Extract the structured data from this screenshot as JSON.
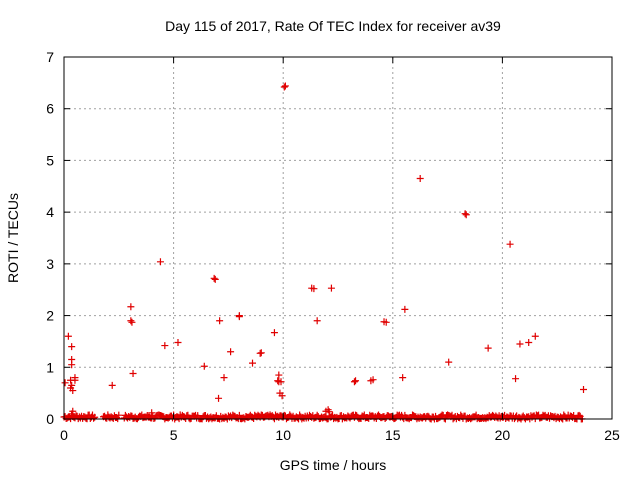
{
  "chart_data": {
    "type": "scatter",
    "title": "Day 115 of 2017, Rate Of TEC Index for receiver av39",
    "xlabel": "GPS time / hours",
    "ylabel": "ROTI / TECUs",
    "xlim": [
      0,
      25
    ],
    "ylim": [
      0,
      7
    ],
    "xticks": [
      "0",
      "5",
      "10",
      "15",
      "20",
      "25"
    ],
    "yticks": [
      "0",
      "1",
      "2",
      "3",
      "4",
      "5",
      "6",
      "7"
    ],
    "grid": true,
    "marker": "plus",
    "color": "#e00000",
    "baseline_noise": {
      "x_start": 0.0,
      "x_end": 23.7,
      "y_min": 0.0,
      "y_max": 0.08,
      "step": 0.05,
      "gaps": [
        [
          1.45,
          1.8
        ],
        [
          2.5,
          2.7
        ],
        [
          23.8,
          25
        ]
      ]
    },
    "points": [
      [
        0.05,
        0.7
      ],
      [
        0.2,
        1.6
      ],
      [
        0.3,
        0.75
      ],
      [
        0.3,
        0.6
      ],
      [
        0.35,
        1.4
      ],
      [
        0.35,
        1.15
      ],
      [
        0.35,
        1.05
      ],
      [
        0.35,
        0.65
      ],
      [
        0.4,
        0.55
      ],
      [
        0.5,
        0.8
      ],
      [
        0.5,
        0.75
      ],
      [
        0.35,
        0.1
      ],
      [
        0.4,
        0.15
      ],
      [
        2.2,
        0.65
      ],
      [
        3.05,
        2.17
      ],
      [
        3.05,
        1.9
      ],
      [
        3.1,
        1.87
      ],
      [
        3.15,
        0.88
      ],
      [
        4.0,
        0.12
      ],
      [
        4.4,
        3.04
      ],
      [
        4.6,
        1.42
      ],
      [
        5.2,
        1.48
      ],
      [
        6.4,
        1.02
      ],
      [
        6.85,
        2.72
      ],
      [
        6.9,
        2.7
      ],
      [
        7.05,
        0.4
      ],
      [
        7.1,
        1.9
      ],
      [
        7.3,
        0.8
      ],
      [
        7.6,
        1.3
      ],
      [
        8.0,
        1.98
      ],
      [
        8.0,
        2.0
      ],
      [
        8.6,
        1.08
      ],
      [
        8.95,
        1.27
      ],
      [
        9.0,
        1.28
      ],
      [
        9.6,
        1.67
      ],
      [
        9.75,
        0.74
      ],
      [
        9.8,
        0.72
      ],
      [
        9.8,
        0.85
      ],
      [
        9.85,
        0.5
      ],
      [
        9.9,
        0.72
      ],
      [
        9.95,
        0.45
      ],
      [
        10.05,
        6.42
      ],
      [
        10.1,
        6.44
      ],
      [
        11.3,
        2.53
      ],
      [
        11.4,
        2.52
      ],
      [
        11.55,
        1.9
      ],
      [
        12.2,
        2.53
      ],
      [
        13.25,
        0.72
      ],
      [
        13.3,
        0.74
      ],
      [
        14.0,
        0.74
      ],
      [
        14.1,
        0.76
      ],
      [
        14.6,
        1.88
      ],
      [
        14.7,
        1.87
      ],
      [
        15.45,
        0.8
      ],
      [
        15.55,
        2.12
      ],
      [
        16.25,
        4.65
      ],
      [
        17.55,
        1.1
      ],
      [
        18.3,
        3.97
      ],
      [
        18.35,
        3.95
      ],
      [
        19.35,
        1.37
      ],
      [
        20.35,
        3.38
      ],
      [
        20.6,
        0.78
      ],
      [
        20.8,
        1.45
      ],
      [
        21.2,
        1.48
      ],
      [
        21.5,
        1.6
      ],
      [
        23.7,
        0.57
      ],
      [
        11.95,
        0.15
      ],
      [
        12.05,
        0.18
      ],
      [
        12.1,
        0.14
      ]
    ]
  }
}
